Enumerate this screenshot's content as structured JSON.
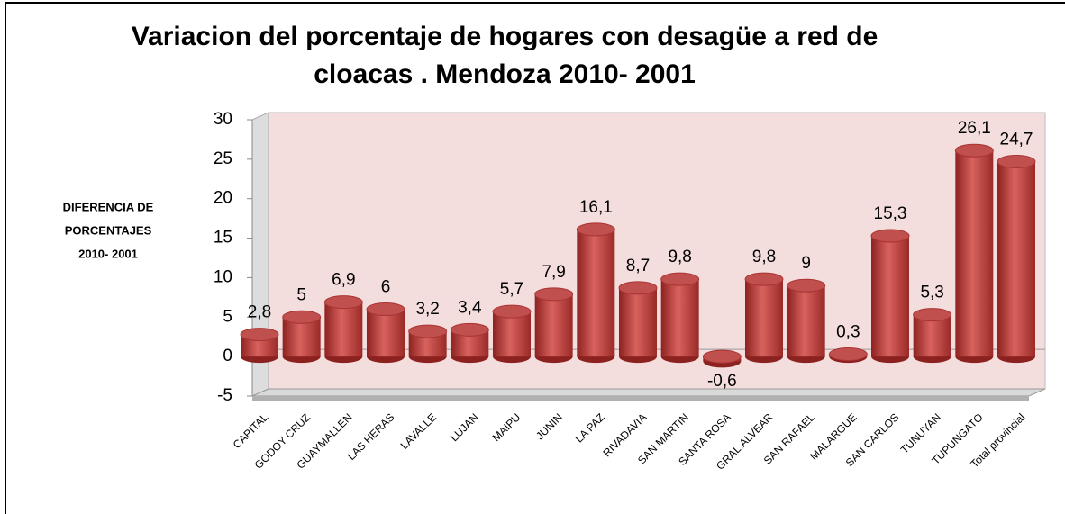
{
  "chart_data": {
    "type": "bar",
    "title": [
      "Variacion del porcentaje de hogares con desagüe a red de",
      "cloacas . Mendoza 2010- 2001"
    ],
    "y_label": [
      "DIFERENCIA DE",
      "PORCENTAJES",
      "2010- 2001"
    ],
    "categories": [
      "CAPITAL",
      "GODOY CRUZ",
      "GUAYMALLEN",
      "LAS HERAS",
      "LAVALLE",
      "LUJAN",
      "MAIPU",
      "JUNIN",
      "LA PAZ",
      "RIVADAVIA",
      "SAN MARTIN",
      "SANTA ROSA",
      "GRAL.ALVEAR",
      "SAN RAFAEL",
      "MALARGUE",
      "SAN CARLOS",
      "TUNUYAN",
      "TUPUNGATO",
      "Total provincial"
    ],
    "values": [
      2.8,
      5,
      6.9,
      6,
      3.2,
      3.4,
      5.7,
      7.9,
      16.1,
      8.7,
      9.8,
      -0.6,
      9.8,
      9,
      0.3,
      15.3,
      5.3,
      26.1,
      24.7
    ],
    "value_labels": [
      "2,8",
      "5",
      "6,9",
      "6",
      "3,2",
      "3,4",
      "5,7",
      "7,9",
      "16,1",
      "8,7",
      "9,8",
      "-0,6",
      "9,8",
      "9",
      "0,3",
      "15,3",
      "5,3",
      "26,1",
      "24,7"
    ],
    "color": "#c0504d",
    "ylim": [
      -5,
      30
    ],
    "yticks": [
      -5,
      0,
      5,
      10,
      15,
      20,
      25,
      30
    ]
  }
}
